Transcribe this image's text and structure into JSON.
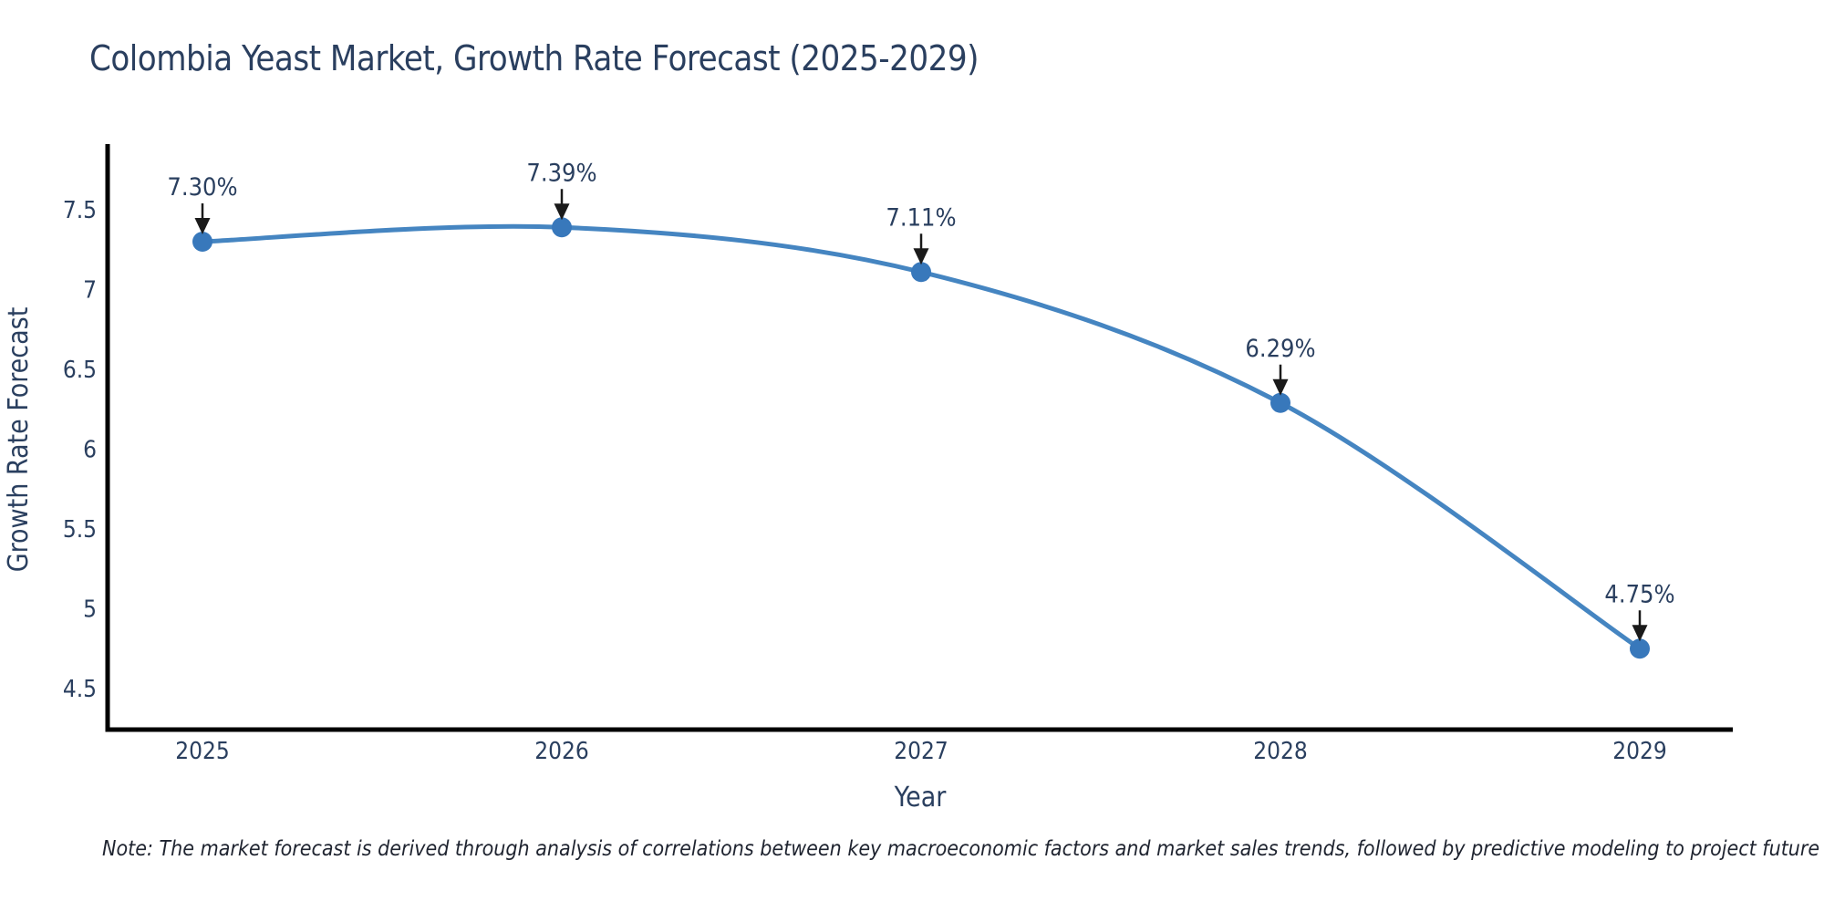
{
  "title": "Colombia Yeast Market, Growth Rate Forecast (2025-2029)",
  "note": "Note: The market forecast is derived through analysis of correlations between key macroeconomic factors and market sales trends, followed by predictive modeling to project future sales",
  "chart_data": {
    "type": "line",
    "title": "Colombia Yeast Market, Growth Rate Forecast (2025-2029)",
    "xlabel": "Year",
    "ylabel": "Growth Rate Forecast",
    "x": [
      2025,
      2026,
      2027,
      2028,
      2029
    ],
    "series": [
      {
        "name": "Growth Rate Forecast",
        "values": [
          7.3,
          7.39,
          7.11,
          6.29,
          4.75
        ]
      }
    ],
    "point_labels": [
      "7.30%",
      "7.39%",
      "7.11%",
      "6.29%",
      "4.75%"
    ],
    "y_ticks": [
      4.5,
      5,
      5.5,
      6,
      6.5,
      7,
      7.5
    ],
    "ylim": [
      4.24,
      7.91
    ],
    "grid": false,
    "legend": "none",
    "line_shape": "spline",
    "annotations": "value labels with downward black arrows above each point",
    "colors": {
      "line": "#4585c1",
      "marker": "#3878bb",
      "axis_line": "#000000",
      "text": "#2a3f5f",
      "annotation_text": "#333333",
      "arrow": "#1a1a1a",
      "background": "#ffffff"
    }
  }
}
